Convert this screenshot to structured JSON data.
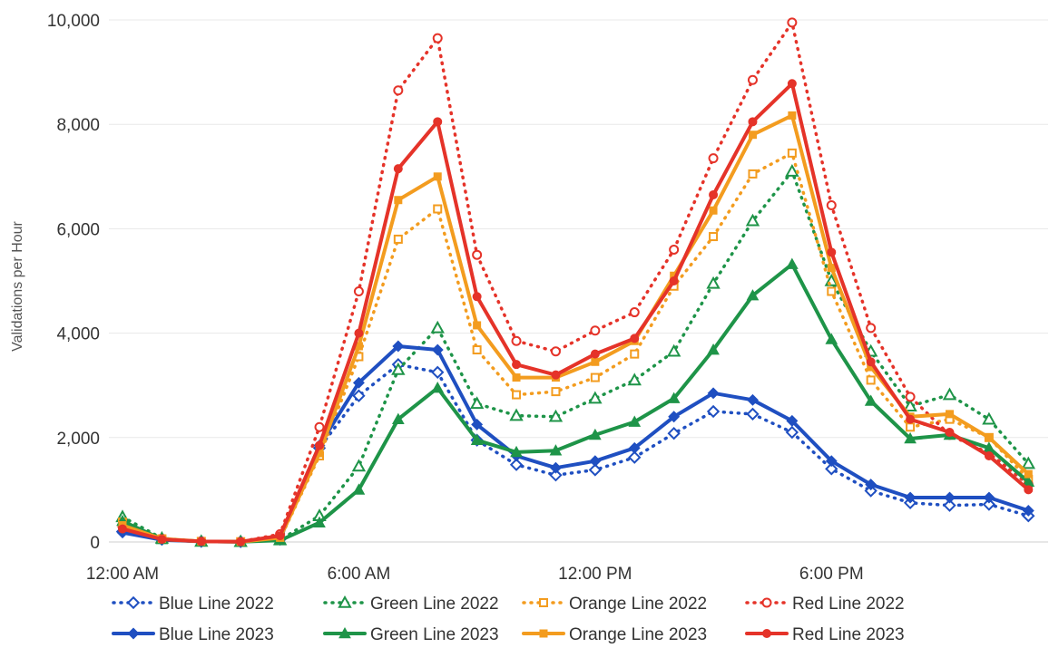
{
  "chart_data": {
    "type": "line",
    "ylabel": "Validations per Hour",
    "xlabel": "",
    "ylim": [
      0,
      10000
    ],
    "yticks": [
      0,
      2000,
      4000,
      6000,
      8000,
      10000
    ],
    "ytick_labels": [
      "0",
      "2,000",
      "4,000",
      "6,000",
      "8,000",
      "10,000"
    ],
    "xlim": [
      0,
      23
    ],
    "xticks": [
      0,
      6,
      12,
      18
    ],
    "xtick_labels": [
      "12:00 AM",
      "6:00 AM",
      "12:00 PM",
      "6:00 PM"
    ],
    "x": [
      0,
      1,
      2,
      3,
      4,
      5,
      6,
      7,
      8,
      9,
      10,
      11,
      12,
      13,
      14,
      15,
      16,
      17,
      18,
      19,
      20,
      21,
      22,
      23
    ],
    "grid": "horizontal",
    "legend_position": "bottom",
    "series": [
      {
        "name": "Blue Line 2022",
        "color": "#1f4fc1",
        "style": "dotted",
        "marker": "diamond",
        "values": [
          200,
          50,
          10,
          5,
          50,
          1800,
          2800,
          3400,
          3250,
          1950,
          1480,
          1280,
          1380,
          1620,
          2080,
          2500,
          2450,
          2100,
          1400,
          980,
          750,
          700,
          720,
          500
        ]
      },
      {
        "name": "Green Line 2022",
        "color": "#1e9448",
        "style": "dotted",
        "marker": "triangle",
        "values": [
          480,
          70,
          10,
          5,
          40,
          500,
          1450,
          3300,
          4100,
          2650,
          2420,
          2400,
          2750,
          3100,
          3650,
          4950,
          6150,
          7100,
          5000,
          3650,
          2600,
          2820,
          2350,
          1500
        ]
      },
      {
        "name": "Orange Line 2022",
        "color": "#f39c1f",
        "style": "dotted",
        "marker": "square",
        "values": [
          380,
          60,
          10,
          5,
          60,
          1650,
          3550,
          5800,
          6380,
          3680,
          2820,
          2880,
          3150,
          3600,
          4900,
          5850,
          7050,
          7450,
          4800,
          3100,
          2200,
          2350,
          2000,
          1200
        ]
      },
      {
        "name": "Red Line 2022",
        "color": "#e53329",
        "style": "dotted",
        "marker": "circle",
        "values": [
          300,
          60,
          10,
          5,
          150,
          2200,
          4800,
          8650,
          9650,
          5500,
          3850,
          3650,
          4050,
          4400,
          5600,
          7350,
          8850,
          9950,
          6450,
          4100,
          2780,
          2050,
          1700,
          1100
        ]
      },
      {
        "name": "Blue Line 2023",
        "color": "#1f4fc1",
        "style": "solid",
        "marker": "diamond",
        "values": [
          180,
          40,
          10,
          5,
          60,
          1850,
          3050,
          3750,
          3680,
          2250,
          1650,
          1420,
          1550,
          1800,
          2400,
          2850,
          2720,
          2320,
          1550,
          1100,
          850,
          850,
          850,
          600
        ]
      },
      {
        "name": "Green Line 2023",
        "color": "#1e9448",
        "style": "solid",
        "marker": "triangle",
        "values": [
          400,
          50,
          10,
          5,
          30,
          370,
          1000,
          2350,
          2950,
          1950,
          1720,
          1750,
          2050,
          2300,
          2750,
          3680,
          4720,
          5320,
          3880,
          2700,
          1980,
          2050,
          1800,
          1150
        ]
      },
      {
        "name": "Orange Line 2023",
        "color": "#f39c1f",
        "style": "solid",
        "marker": "square",
        "values": [
          320,
          60,
          10,
          5,
          80,
          1700,
          3750,
          6550,
          7000,
          4150,
          3150,
          3150,
          3450,
          3850,
          5100,
          6350,
          7800,
          8170,
          5250,
          3350,
          2400,
          2450,
          2000,
          1300
        ]
      },
      {
        "name": "Red Line 2023",
        "color": "#e53329",
        "style": "solid",
        "marker": "circle",
        "values": [
          250,
          50,
          10,
          5,
          120,
          1850,
          4000,
          7150,
          8050,
          4700,
          3400,
          3200,
          3600,
          3900,
          5000,
          6650,
          8050,
          8780,
          5550,
          3450,
          2350,
          2100,
          1650,
          1000
        ]
      }
    ]
  }
}
